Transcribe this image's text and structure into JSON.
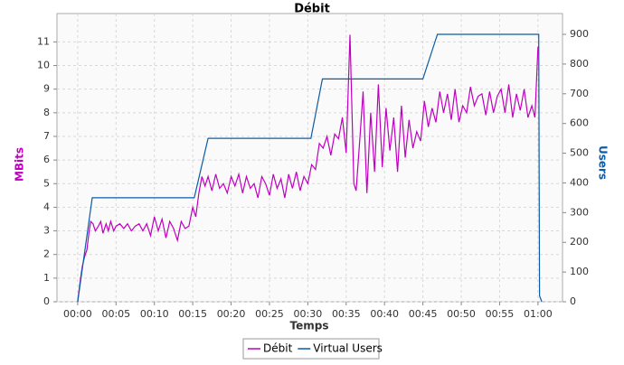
{
  "chart_data": {
    "type": "line",
    "title": "Débit",
    "x_label": "Temps",
    "y_label": "MBits",
    "y2_label": "Users",
    "grid": true,
    "legend": "bottom",
    "xlim": [
      -2.7,
      63.2
    ],
    "xticks": [
      {
        "value": 0,
        "label": "00:00"
      },
      {
        "value": 5,
        "label": "00:05"
      },
      {
        "value": 10,
        "label": "00:10"
      },
      {
        "value": 15,
        "label": "00:15"
      },
      {
        "value": 20,
        "label": "00:20"
      },
      {
        "value": 25,
        "label": "00:25"
      },
      {
        "value": 30,
        "label": "00:30"
      },
      {
        "value": 35,
        "label": "00:35"
      },
      {
        "value": 40,
        "label": "00:40"
      },
      {
        "value": 45,
        "label": "00:45"
      },
      {
        "value": 50,
        "label": "00:50"
      },
      {
        "value": 55,
        "label": "00:55"
      },
      {
        "value": 60,
        "label": "01:00"
      }
    ],
    "ylim": [
      0,
      12.2
    ],
    "yticks": [
      0,
      1,
      2,
      3,
      4,
      5,
      6,
      7,
      8,
      9,
      10,
      11
    ],
    "y2lim": [
      0,
      970
    ],
    "y2ticks": [
      0,
      100,
      200,
      300,
      400,
      500,
      600,
      700,
      800,
      900
    ],
    "series": [
      {
        "name": "Débit",
        "color": "#c000c0",
        "x": [
          0,
          0.3,
          0.6,
          0.9,
          1.2,
          1.5,
          1.7,
          2.0,
          2.3,
          2.7,
          3.0,
          3.3,
          3.7,
          4.0,
          4.3,
          4.7,
          5.0,
          5.5,
          6.0,
          6.5,
          7.0,
          7.5,
          8.0,
          8.5,
          9.0,
          9.5,
          10.0,
          10.5,
          11.0,
          11.5,
          12.0,
          12.5,
          13.0,
          13.5,
          14.0,
          14.5,
          15.0,
          15.4,
          15.8,
          16.2,
          16.6,
          17.0,
          17.5,
          18.0,
          18.5,
          19.0,
          19.5,
          20.0,
          20.5,
          21.0,
          21.5,
          22.0,
          22.5,
          23.0,
          23.5,
          24.0,
          24.5,
          25.0,
          25.5,
          26.0,
          26.5,
          27.0,
          27.5,
          28.0,
          28.5,
          29.0,
          29.5,
          30.0,
          30.5,
          31.0,
          31.5,
          32.0,
          32.5,
          33.0,
          33.5,
          34.0,
          34.5,
          35.0,
          35.5,
          36.0,
          36.3,
          36.8,
          37.2,
          37.7,
          38.2,
          38.7,
          39.2,
          39.7,
          40.2,
          40.7,
          41.2,
          41.7,
          42.2,
          42.7,
          43.2,
          43.7,
          44.2,
          44.7,
          45.2,
          45.7,
          46.2,
          46.7,
          47.2,
          47.7,
          48.2,
          48.7,
          49.2,
          49.7,
          50.2,
          50.7,
          51.2,
          51.7,
          52.2,
          52.7,
          53.2,
          53.7,
          54.2,
          54.7,
          55.2,
          55.7,
          56.2,
          56.7,
          57.2,
          57.7,
          58.2,
          58.7,
          59.2,
          59.6,
          60.0
        ],
        "values": [
          0,
          0.8,
          1.5,
          1.9,
          2.2,
          3.0,
          3.4,
          3.3,
          3.0,
          3.2,
          3.4,
          2.9,
          3.3,
          3.0,
          3.4,
          3.0,
          3.2,
          3.3,
          3.1,
          3.3,
          3.0,
          3.2,
          3.3,
          3.0,
          3.3,
          2.8,
          3.6,
          3.0,
          3.5,
          2.7,
          3.4,
          3.1,
          2.6,
          3.4,
          3.1,
          3.2,
          4.0,
          3.6,
          4.6,
          5.3,
          4.9,
          5.3,
          4.7,
          5.4,
          4.8,
          5.0,
          4.6,
          5.3,
          4.9,
          5.4,
          4.6,
          5.3,
          4.8,
          5.0,
          4.4,
          5.3,
          5.0,
          4.5,
          5.4,
          4.8,
          5.2,
          4.4,
          5.4,
          4.8,
          5.5,
          4.7,
          5.3,
          5.0,
          5.8,
          5.6,
          6.7,
          6.5,
          7.0,
          6.2,
          7.1,
          6.9,
          7.8,
          6.3,
          11.3,
          5.0,
          4.7,
          7.0,
          8.9,
          4.6,
          8.0,
          5.5,
          9.2,
          5.7,
          8.2,
          6.4,
          7.8,
          5.5,
          8.3,
          6.1,
          7.7,
          6.5,
          7.2,
          6.8,
          8.5,
          7.4,
          8.2,
          7.6,
          8.9,
          8.0,
          8.8,
          7.7,
          9.0,
          7.6,
          8.3,
          8.0,
          9.1,
          8.3,
          8.7,
          8.8,
          7.9,
          8.9,
          8.0,
          8.7,
          9.0,
          8.0,
          9.2,
          7.8,
          8.8,
          8.1,
          9.0,
          7.8,
          8.3,
          7.8,
          10.8
        ]
      },
      {
        "name": "Virtual Users",
        "color": "#0a5ca8",
        "axis": "y2",
        "x": [
          0,
          1.9,
          15.2,
          17.0,
          30.4,
          31.9,
          45.0,
          46.9,
          60.1,
          60.2,
          60.5
        ],
        "values": [
          0,
          350,
          350,
          550,
          550,
          750,
          750,
          900,
          900,
          20,
          0
        ]
      }
    ]
  }
}
